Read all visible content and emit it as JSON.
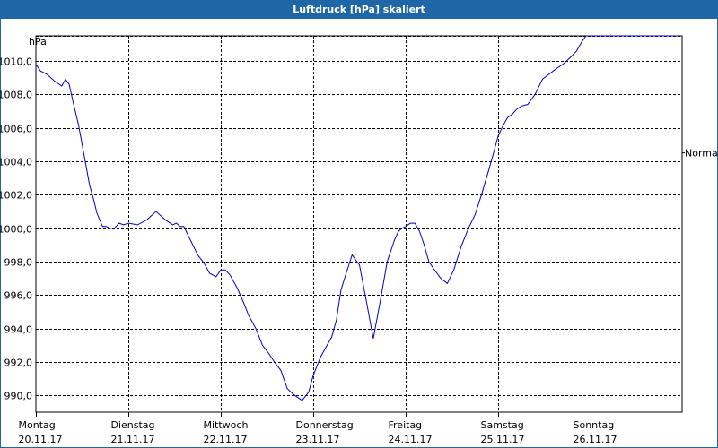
{
  "window": {
    "title": "Luftdruck [hPa] skaliert"
  },
  "chart_data": {
    "type": "line",
    "title": "Luftdruck [hPa] skaliert",
    "ylabel": "hPa",
    "ylim": [
      989.0,
      1011.5
    ],
    "yticks": [
      "990,0",
      "992,0",
      "994,0",
      "996,0",
      "998,0",
      "1000,0",
      "1002,0",
      "1004,0",
      "1006,0",
      "1008,0",
      "1010,0"
    ],
    "ytick_values": [
      990,
      992,
      994,
      996,
      998,
      1000,
      1002,
      1004,
      1006,
      1008,
      1010
    ],
    "categories": [
      {
        "day": "Montag",
        "date": "20.11.17"
      },
      {
        "day": "Dienstag",
        "date": "21.11.17"
      },
      {
        "day": "Mittwoch",
        "date": "22.11.17"
      },
      {
        "day": "Donnerstag",
        "date": "23.11.17"
      },
      {
        "day": "Freitag",
        "date": "24.11.17"
      },
      {
        "day": "Samstag",
        "date": "25.11.17"
      },
      {
        "day": "Sonntag",
        "date": "26.11.17"
      }
    ],
    "xlim_days": [
      0,
      7.0
    ],
    "reference": {
      "label": "Normal",
      "value": 1004.5
    },
    "grid": true,
    "series": [
      {
        "color": "#0000cc",
        "x": [
          0.0,
          0.05,
          0.12,
          0.2,
          0.28,
          0.32,
          0.36,
          0.4,
          0.46,
          0.52,
          0.58,
          0.62,
          0.66,
          0.72,
          0.76,
          0.8,
          0.85,
          0.9,
          0.95,
          1.0,
          1.1,
          1.2,
          1.3,
          1.4,
          1.48,
          1.52,
          1.56,
          1.6,
          1.68,
          1.75,
          1.82,
          1.88,
          1.95,
          2.0,
          2.05,
          2.1,
          2.18,
          2.25,
          2.3,
          2.38,
          2.45,
          2.52,
          2.58,
          2.65,
          2.72,
          2.8,
          2.88,
          2.95,
          3.0,
          3.08,
          3.15,
          3.2,
          3.25,
          3.3,
          3.35,
          3.42,
          3.5,
          3.58,
          3.65,
          3.72,
          3.8,
          3.88,
          3.92,
          3.96,
          4.0,
          4.05,
          4.1,
          4.15,
          4.2,
          4.25,
          4.3,
          4.38,
          4.45,
          4.52,
          4.6,
          4.68,
          4.75,
          4.82,
          4.9,
          4.95,
          5.0,
          5.05,
          5.1,
          5.15,
          5.2,
          5.25,
          5.32,
          5.4,
          5.48,
          5.55,
          5.62,
          5.7,
          5.78,
          5.85,
          5.9,
          5.95,
          6.0,
          6.05,
          6.1,
          6.15,
          6.2,
          6.25,
          6.3,
          6.35,
          6.4,
          6.45,
          6.5,
          6.55,
          6.6,
          6.65,
          6.7,
          6.75,
          6.8,
          6.85,
          6.9,
          6.95
        ],
        "values": [
          1009.8,
          1009.4,
          1009.2,
          1008.8,
          1008.5,
          1008.9,
          1008.6,
          1007.6,
          1006.2,
          1004.4,
          1002.6,
          1001.8,
          1000.9,
          1000.1,
          1000.1,
          1000.0,
          1000.0,
          1000.3,
          1000.2,
          1000.3,
          1000.2,
          1000.5,
          1001.0,
          1000.5,
          1000.2,
          1000.3,
          1000.1,
          1000.1,
          999.2,
          998.4,
          997.9,
          997.3,
          997.1,
          997.5,
          997.5,
          997.2,
          996.4,
          995.5,
          994.8,
          994.0,
          993.0,
          992.5,
          992.0,
          991.5,
          990.4,
          990.0,
          989.7,
          990.2,
          991.2,
          992.3,
          993.0,
          993.5,
          994.5,
          996.3,
          997.2,
          998.4,
          997.8,
          995.5,
          993.4,
          995.5,
          998.0,
          999.3,
          999.8,
          1000.0,
          1000.1,
          1000.3,
          1000.3,
          999.8,
          999.0,
          998.0,
          997.6,
          997.0,
          996.7,
          997.5,
          998.9,
          1000.0,
          1000.8,
          1002.0,
          1003.5,
          1004.5,
          1005.5,
          1006.1,
          1006.6,
          1006.8,
          1007.1,
          1007.3,
          1007.4,
          1008.0,
          1008.9,
          1009.2,
          1009.5,
          1009.8,
          1010.2,
          1010.6,
          1011.1,
          1011.5,
          1011.5,
          1011.5,
          1011.5,
          1011.5,
          1011.5,
          1011.5,
          1011.5,
          1011.5,
          1011.5,
          1011.5,
          1011.5,
          1011.5,
          1011.5,
          1011.5,
          1011.5,
          1011.5,
          1011.5,
          1011.5,
          1011.5,
          1011.5
        ]
      }
    ]
  }
}
